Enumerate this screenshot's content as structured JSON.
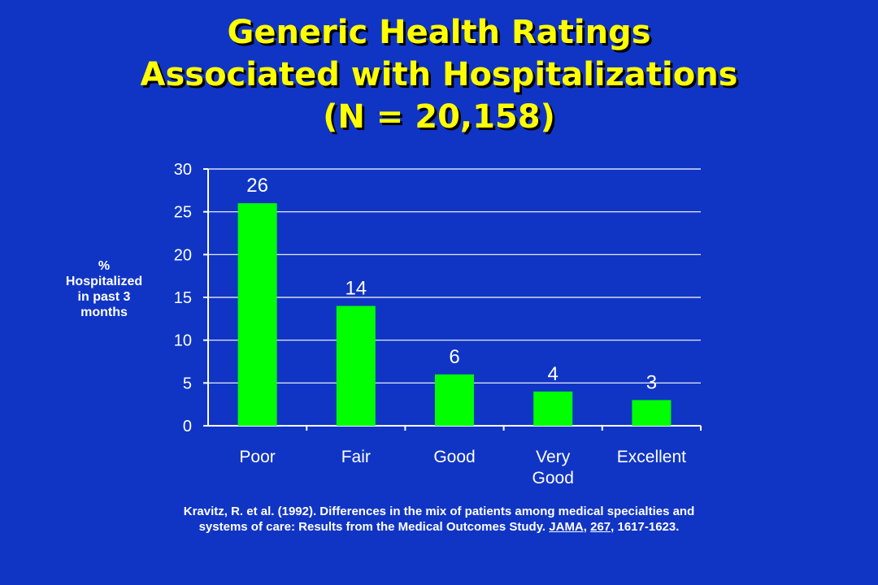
{
  "title_lines": [
    "Generic Health Ratings",
    "Associated with Hospitalizations",
    "(N = 20,158)"
  ],
  "chart_data": {
    "type": "bar",
    "title": "",
    "categories": [
      "Poor",
      "Fair",
      "Good",
      "Very Good",
      "Excellent"
    ],
    "category_lines": [
      [
        "Poor"
      ],
      [
        "Fair"
      ],
      [
        "Good"
      ],
      [
        "Very",
        "Good"
      ],
      [
        "Excellent"
      ]
    ],
    "values": [
      26,
      14,
      6,
      4,
      3
    ],
    "data_labels": [
      "26",
      "14",
      "6",
      "4",
      "3"
    ],
    "ylabel_lines": [
      "%",
      "Hospitalized",
      "in past 3",
      "months"
    ],
    "ylim": [
      0,
      30
    ],
    "yticks": [
      0,
      5,
      10,
      15,
      20,
      25,
      30
    ],
    "ytick_labels": [
      "0",
      "5",
      "10",
      "15",
      "20",
      "25",
      "30"
    ],
    "grid": true,
    "bar_color": "#00ff00",
    "grid_color": "#ffffff"
  },
  "citation": {
    "line1": "Kravitz, R. et al.  (1992).  Differences in the mix of patients among medical specialties and",
    "line2_start": "systems of care:  Results from the Medical Outcomes Study.  ",
    "journal": "JAMA",
    "sep1": ", ",
    "volume": "267",
    "sep2": ", ",
    "pages": "1617-1623."
  }
}
